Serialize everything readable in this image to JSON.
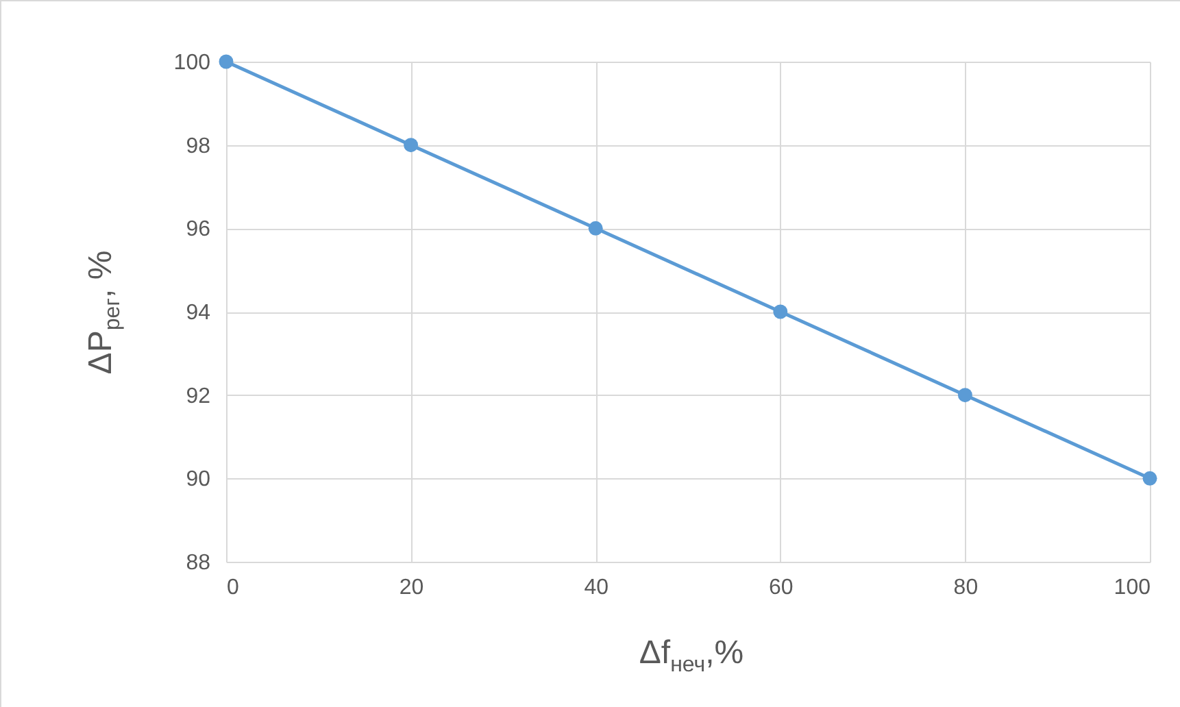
{
  "chart_data": {
    "type": "line",
    "xlabel": "Δf$_{неч}$,%",
    "ylabel": "ΔP$_{рег}$, %",
    "x": [
      0,
      20,
      40,
      60,
      80,
      100
    ],
    "series": [
      {
        "color": "#5b9bd5",
        "values": [
          100,
          98,
          96,
          94,
          92,
          90
        ]
      }
    ],
    "xlim": [
      0,
      100
    ],
    "xticks": [
      0,
      20,
      40,
      60,
      80,
      100
    ],
    "ylim": [
      88,
      100
    ],
    "yticks": [
      88,
      90,
      92,
      94,
      96,
      98,
      100
    ],
    "grid": true,
    "marker": "circle",
    "line_style": "solid"
  }
}
